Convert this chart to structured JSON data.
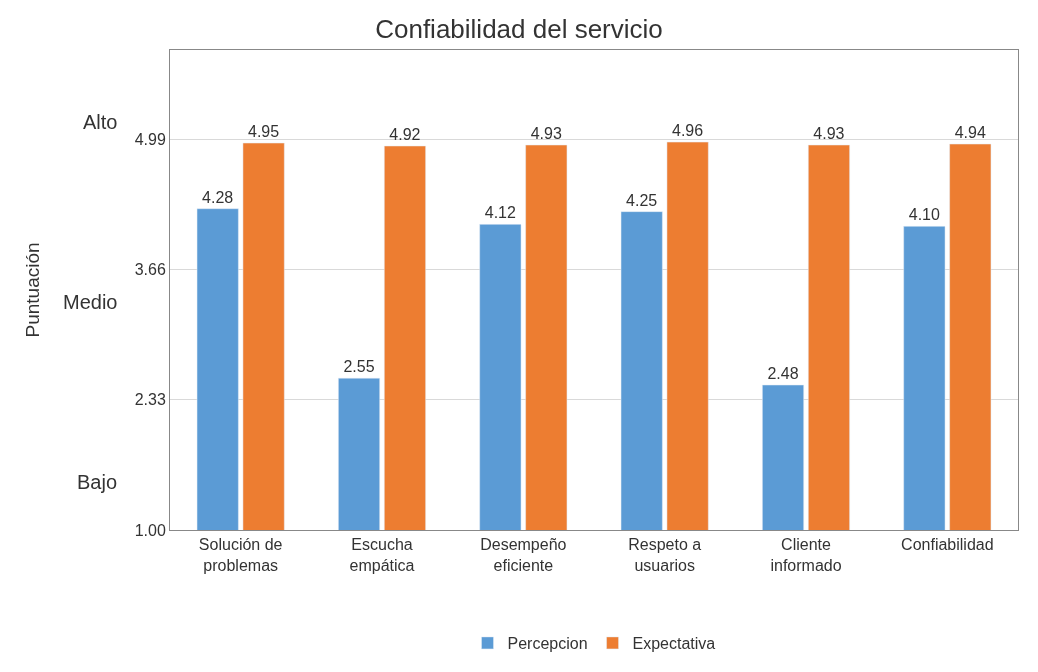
{
  "chart_data": {
    "type": "bar",
    "title": "Confiabilidad del servicio",
    "ylabel": "Puntuación",
    "categories": [
      "Solución de problemas",
      "Escucha empática",
      "Desempeño eficiente",
      "Respeto a usuarios",
      "Cliente informado",
      "Confiabilidad"
    ],
    "series": [
      {
        "name": "Percepcion",
        "color": "#5b9bd5",
        "values": [
          4.28,
          2.55,
          4.12,
          4.25,
          2.48,
          4.1
        ],
        "value_labels": [
          "4.28",
          "2.55",
          "4.12",
          "4.25",
          "2.48",
          "4.10"
        ]
      },
      {
        "name": "Expectativa",
        "color": "#ed7d31",
        "values": [
          4.95,
          4.92,
          4.93,
          4.96,
          4.93,
          4.94
        ],
        "value_labels": [
          "4.95",
          "4.92",
          "4.93",
          "4.96",
          "4.93",
          "4.94"
        ]
      }
    ],
    "ylim": [
      1,
      5.9
    ],
    "yticks": [
      {
        "value": 1,
        "label": "1.00"
      },
      {
        "value": 2.33,
        "label": "2.33"
      },
      {
        "value": 3.66,
        "label": "3.66"
      },
      {
        "value": 4.99,
        "label": "4.99"
      }
    ],
    "annotations": [
      "Alto",
      "Medio",
      "Bajo"
    ],
    "grid": "y",
    "legend": "bottom"
  }
}
